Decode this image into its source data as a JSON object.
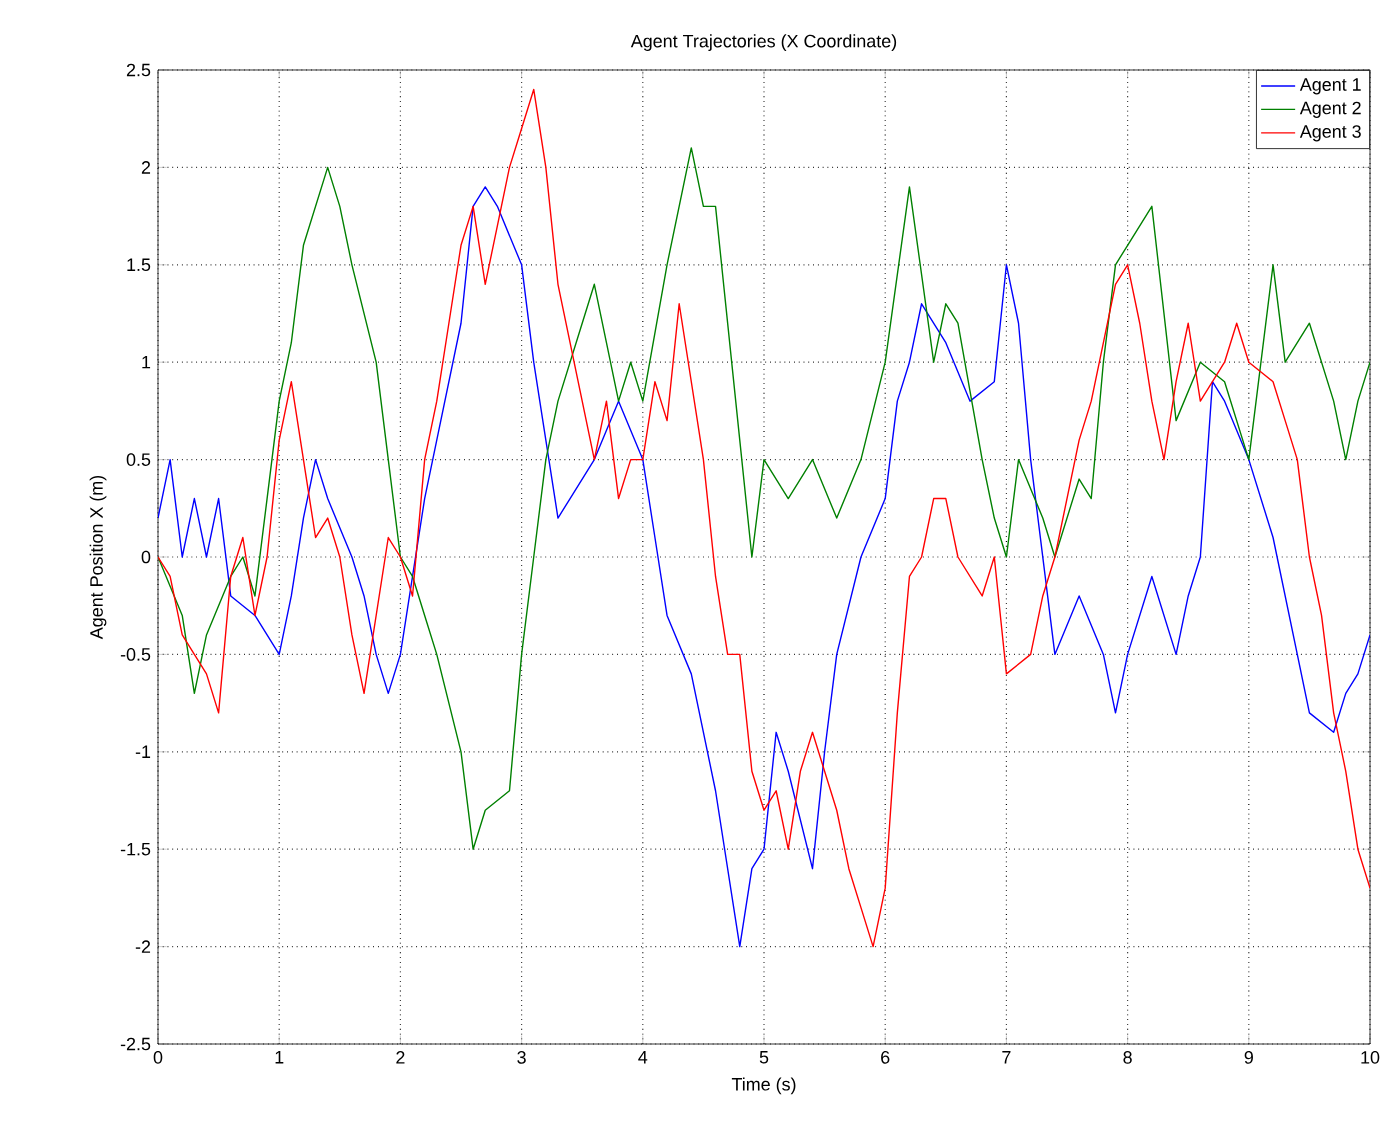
{
  "chart_data": {
    "type": "line",
    "title": "Agent Trajectories (X Coordinate)",
    "xlabel": "Time (s)",
    "ylabel": "Agent Position X (m)",
    "xlim": [
      0,
      10
    ],
    "ylim": [
      -2.5,
      2.5
    ],
    "xticks": [
      0,
      1,
      2,
      3,
      4,
      5,
      6,
      7,
      8,
      9,
      10
    ],
    "yticks": [
      -2.5,
      -2,
      -1.5,
      -1,
      -0.5,
      0,
      0.5,
      1,
      1.5,
      2,
      2.5
    ],
    "grid": true,
    "legend": "top right",
    "line_style": "solid",
    "series": [
      {
        "name": "Agent 1",
        "color": "#0000ff",
        "x": [
          0,
          0.1,
          0.2,
          0.3,
          0.4,
          0.5,
          0.6,
          0.8,
          1.0,
          1.1,
          1.2,
          1.3,
          1.4,
          1.6,
          1.7,
          1.8,
          1.9,
          2.0,
          2.1,
          2.2,
          2.3,
          2.5,
          2.6,
          2.7,
          2.8,
          3.0,
          3.1,
          3.2,
          3.3,
          3.4,
          3.6,
          3.8,
          4.0,
          4.1,
          4.2,
          4.4,
          4.6,
          4.7,
          4.8,
          4.9,
          5.0,
          5.1,
          5.2,
          5.4,
          5.5,
          5.6,
          5.8,
          6.0,
          6.1,
          6.2,
          6.3,
          6.5,
          6.7,
          6.9,
          7.0,
          7.1,
          7.2,
          7.4,
          7.6,
          7.8,
          7.9,
          8.0,
          8.2,
          8.4,
          8.5,
          8.6,
          8.7,
          8.8,
          9.0,
          9.2,
          9.4,
          9.5,
          9.7,
          9.8,
          9.9,
          10
        ],
        "values": [
          0.2,
          0.5,
          0.0,
          0.3,
          0.0,
          0.3,
          -0.2,
          -0.3,
          -0.5,
          -0.2,
          0.2,
          0.5,
          0.3,
          0.0,
          -0.2,
          -0.5,
          -0.7,
          -0.5,
          -0.1,
          0.3,
          0.6,
          1.2,
          1.8,
          1.9,
          1.8,
          1.5,
          1.0,
          0.6,
          0.2,
          0.3,
          0.5,
          0.8,
          0.5,
          0.1,
          -0.3,
          -0.6,
          -1.2,
          -1.6,
          -2.0,
          -1.6,
          -1.5,
          -0.9,
          -1.1,
          -1.6,
          -1.0,
          -0.5,
          0.0,
          0.3,
          0.8,
          1.0,
          1.3,
          1.1,
          0.8,
          0.9,
          1.5,
          1.2,
          0.5,
          -0.5,
          -0.2,
          -0.5,
          -0.8,
          -0.5,
          -0.1,
          -0.5,
          -0.2,
          0.0,
          0.9,
          0.8,
          0.5,
          0.1,
          -0.5,
          -0.8,
          -0.9,
          -0.7,
          -0.6,
          -0.4
        ]
      },
      {
        "name": "Agent 2",
        "color": "#008000",
        "x": [
          0,
          0.2,
          0.3,
          0.4,
          0.6,
          0.7,
          0.8,
          0.9,
          1.0,
          1.1,
          1.2,
          1.4,
          1.5,
          1.6,
          1.8,
          1.9,
          2.0,
          2.1,
          2.2,
          2.3,
          2.5,
          2.6,
          2.7,
          2.9,
          3.0,
          3.1,
          3.2,
          3.3,
          3.5,
          3.6,
          3.7,
          3.8,
          3.9,
          4.0,
          4.2,
          4.4,
          4.5,
          4.6,
          4.7,
          4.8,
          4.9,
          5.0,
          5.2,
          5.4,
          5.6,
          5.8,
          6.0,
          6.2,
          6.4,
          6.5,
          6.6,
          6.8,
          6.9,
          7.0,
          7.1,
          7.3,
          7.4,
          7.6,
          7.7,
          7.8,
          7.9,
          8.0,
          8.2,
          8.4,
          8.6,
          8.8,
          9.0,
          9.2,
          9.3,
          9.5,
          9.7,
          9.8,
          9.9,
          10
        ],
        "values": [
          0.0,
          -0.3,
          -0.7,
          -0.4,
          -0.1,
          0.0,
          -0.2,
          0.3,
          0.8,
          1.1,
          1.6,
          2.0,
          1.8,
          1.5,
          1.0,
          0.5,
          0.0,
          -0.1,
          -0.3,
          -0.5,
          -1.0,
          -1.5,
          -1.3,
          -1.2,
          -0.5,
          0.0,
          0.5,
          0.8,
          1.2,
          1.4,
          1.1,
          0.8,
          1.0,
          0.8,
          1.5,
          2.1,
          1.8,
          1.8,
          1.2,
          0.6,
          0.0,
          0.5,
          0.3,
          0.5,
          0.2,
          0.5,
          1.0,
          1.9,
          1.0,
          1.3,
          1.2,
          0.5,
          0.2,
          0.0,
          0.5,
          0.2,
          0.0,
          0.4,
          0.3,
          1.0,
          1.5,
          1.6,
          1.8,
          0.7,
          1.0,
          0.9,
          0.5,
          1.5,
          1.0,
          1.2,
          0.8,
          0.5,
          0.8,
          1.0
        ]
      },
      {
        "name": "Agent 3",
        "color": "#ff0000",
        "x": [
          0,
          0.1,
          0.2,
          0.3,
          0.4,
          0.5,
          0.6,
          0.7,
          0.8,
          0.9,
          1.0,
          1.1,
          1.2,
          1.3,
          1.4,
          1.5,
          1.6,
          1.7,
          1.8,
          1.9,
          2.0,
          2.1,
          2.2,
          2.3,
          2.4,
          2.5,
          2.6,
          2.7,
          2.8,
          2.9,
          3.0,
          3.1,
          3.2,
          3.3,
          3.5,
          3.6,
          3.7,
          3.8,
          3.9,
          4.0,
          4.1,
          4.2,
          4.3,
          4.5,
          4.6,
          4.7,
          4.8,
          4.9,
          5.0,
          5.1,
          5.2,
          5.3,
          5.4,
          5.6,
          5.7,
          5.8,
          5.9,
          6.0,
          6.1,
          6.2,
          6.3,
          6.4,
          6.5,
          6.6,
          6.8,
          6.9,
          7.0,
          7.2,
          7.3,
          7.4,
          7.6,
          7.7,
          7.9,
          8.0,
          8.1,
          8.2,
          8.3,
          8.4,
          8.5,
          8.6,
          8.8,
          8.9,
          9.0,
          9.2,
          9.3,
          9.4,
          9.5,
          9.6,
          9.7,
          9.8,
          9.9,
          10
        ],
        "values": [
          0.0,
          -0.1,
          -0.4,
          -0.5,
          -0.6,
          -0.8,
          -0.1,
          0.1,
          -0.3,
          0.0,
          0.6,
          0.9,
          0.5,
          0.1,
          0.2,
          0.0,
          -0.4,
          -0.7,
          -0.3,
          0.1,
          0.0,
          -0.2,
          0.5,
          0.8,
          1.2,
          1.6,
          1.8,
          1.4,
          1.7,
          2.0,
          2.2,
          2.4,
          2.0,
          1.4,
          0.8,
          0.5,
          0.8,
          0.3,
          0.5,
          0.5,
          0.9,
          0.7,
          1.3,
          0.5,
          -0.1,
          -0.5,
          -0.5,
          -1.1,
          -1.3,
          -1.2,
          -1.5,
          -1.1,
          -0.9,
          -1.3,
          -1.6,
          -1.8,
          -2.0,
          -1.7,
          -0.8,
          -0.1,
          0.0,
          0.3,
          0.3,
          0.0,
          -0.2,
          0.0,
          -0.6,
          -0.5,
          -0.2,
          0.0,
          0.6,
          0.8,
          1.4,
          1.5,
          1.2,
          0.8,
          0.5,
          0.9,
          1.2,
          0.8,
          1.0,
          1.2,
          1.0,
          0.9,
          0.7,
          0.5,
          0.0,
          -0.3,
          -0.8,
          -1.1,
          -1.5,
          -1.7
        ]
      }
    ]
  }
}
